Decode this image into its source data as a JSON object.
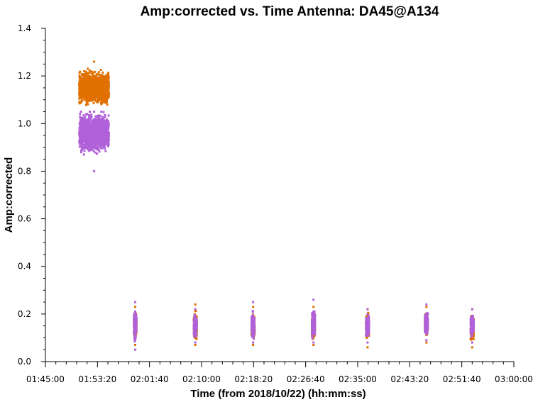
{
  "chart_data": {
    "type": "scatter",
    "title": "Amp:corrected vs. Time Antenna: DA45@A134",
    "xlabel": "Time (from 2018/10/22) (hh:mm:ss)",
    "ylabel": "Amp:corrected",
    "xlim": [
      "01:45:00",
      "03:00:00"
    ],
    "ylim": [
      0.0,
      1.4
    ],
    "x_ticks": [
      "01:45:00",
      "01:53:20",
      "02:01:40",
      "02:10:00",
      "02:18:20",
      "02:26:40",
      "02:35:00",
      "02:43:20",
      "02:51:40",
      "03:00:00"
    ],
    "y_ticks": [
      "0.0",
      "0.2",
      "0.4",
      "0.6",
      "0.8",
      "1.0",
      "1.2",
      "1.4"
    ],
    "grid": false,
    "series": [
      {
        "color": "#e07000",
        "points": [
          {
            "time_start": "01:50:25",
            "time_end": "01:55:10",
            "y_min": 1.05,
            "y_max": 1.26,
            "y_median": 1.15
          },
          {
            "time_start": "01:59:10",
            "time_end": "01:59:35",
            "y_min": 0.07,
            "y_max": 0.23,
            "y_median": 0.15
          },
          {
            "time_start": "02:08:45",
            "time_end": "02:09:15",
            "y_min": 0.07,
            "y_max": 0.24,
            "y_median": 0.15
          },
          {
            "time_start": "02:18:00",
            "time_end": "02:18:30",
            "y_min": 0.07,
            "y_max": 0.23,
            "y_median": 0.15
          },
          {
            "time_start": "02:27:40",
            "time_end": "02:28:10",
            "y_min": 0.07,
            "y_max": 0.23,
            "y_median": 0.15
          },
          {
            "time_start": "02:36:20",
            "time_end": "02:36:50",
            "y_min": 0.06,
            "y_max": 0.22,
            "y_median": 0.145
          },
          {
            "time_start": "02:45:45",
            "time_end": "02:46:15",
            "y_min": 0.08,
            "y_max": 0.23,
            "y_median": 0.155
          },
          {
            "time_start": "02:53:05",
            "time_end": "02:53:35",
            "y_min": 0.06,
            "y_max": 0.22,
            "y_median": 0.14
          }
        ]
      },
      {
        "color": "#b060d8",
        "points": [
          {
            "time_start": "01:50:25",
            "time_end": "01:55:10",
            "y_min": 0.8,
            "y_max": 1.05,
            "y_median": 0.96
          },
          {
            "time_start": "01:59:10",
            "time_end": "01:59:35",
            "y_min": 0.05,
            "y_max": 0.25,
            "y_median": 0.15
          },
          {
            "time_start": "02:08:45",
            "time_end": "02:09:15",
            "y_min": 0.08,
            "y_max": 0.22,
            "y_median": 0.15
          },
          {
            "time_start": "02:18:00",
            "time_end": "02:18:30",
            "y_min": 0.08,
            "y_max": 0.25,
            "y_median": 0.15
          },
          {
            "time_start": "02:27:40",
            "time_end": "02:28:10",
            "y_min": 0.08,
            "y_max": 0.26,
            "y_median": 0.16
          },
          {
            "time_start": "02:36:20",
            "time_end": "02:36:50",
            "y_min": 0.08,
            "y_max": 0.22,
            "y_median": 0.15
          },
          {
            "time_start": "02:45:45",
            "time_end": "02:46:15",
            "y_min": 0.09,
            "y_max": 0.24,
            "y_median": 0.16
          },
          {
            "time_start": "02:53:05",
            "time_end": "02:53:35",
            "y_min": 0.08,
            "y_max": 0.22,
            "y_median": 0.15
          }
        ]
      }
    ]
  }
}
